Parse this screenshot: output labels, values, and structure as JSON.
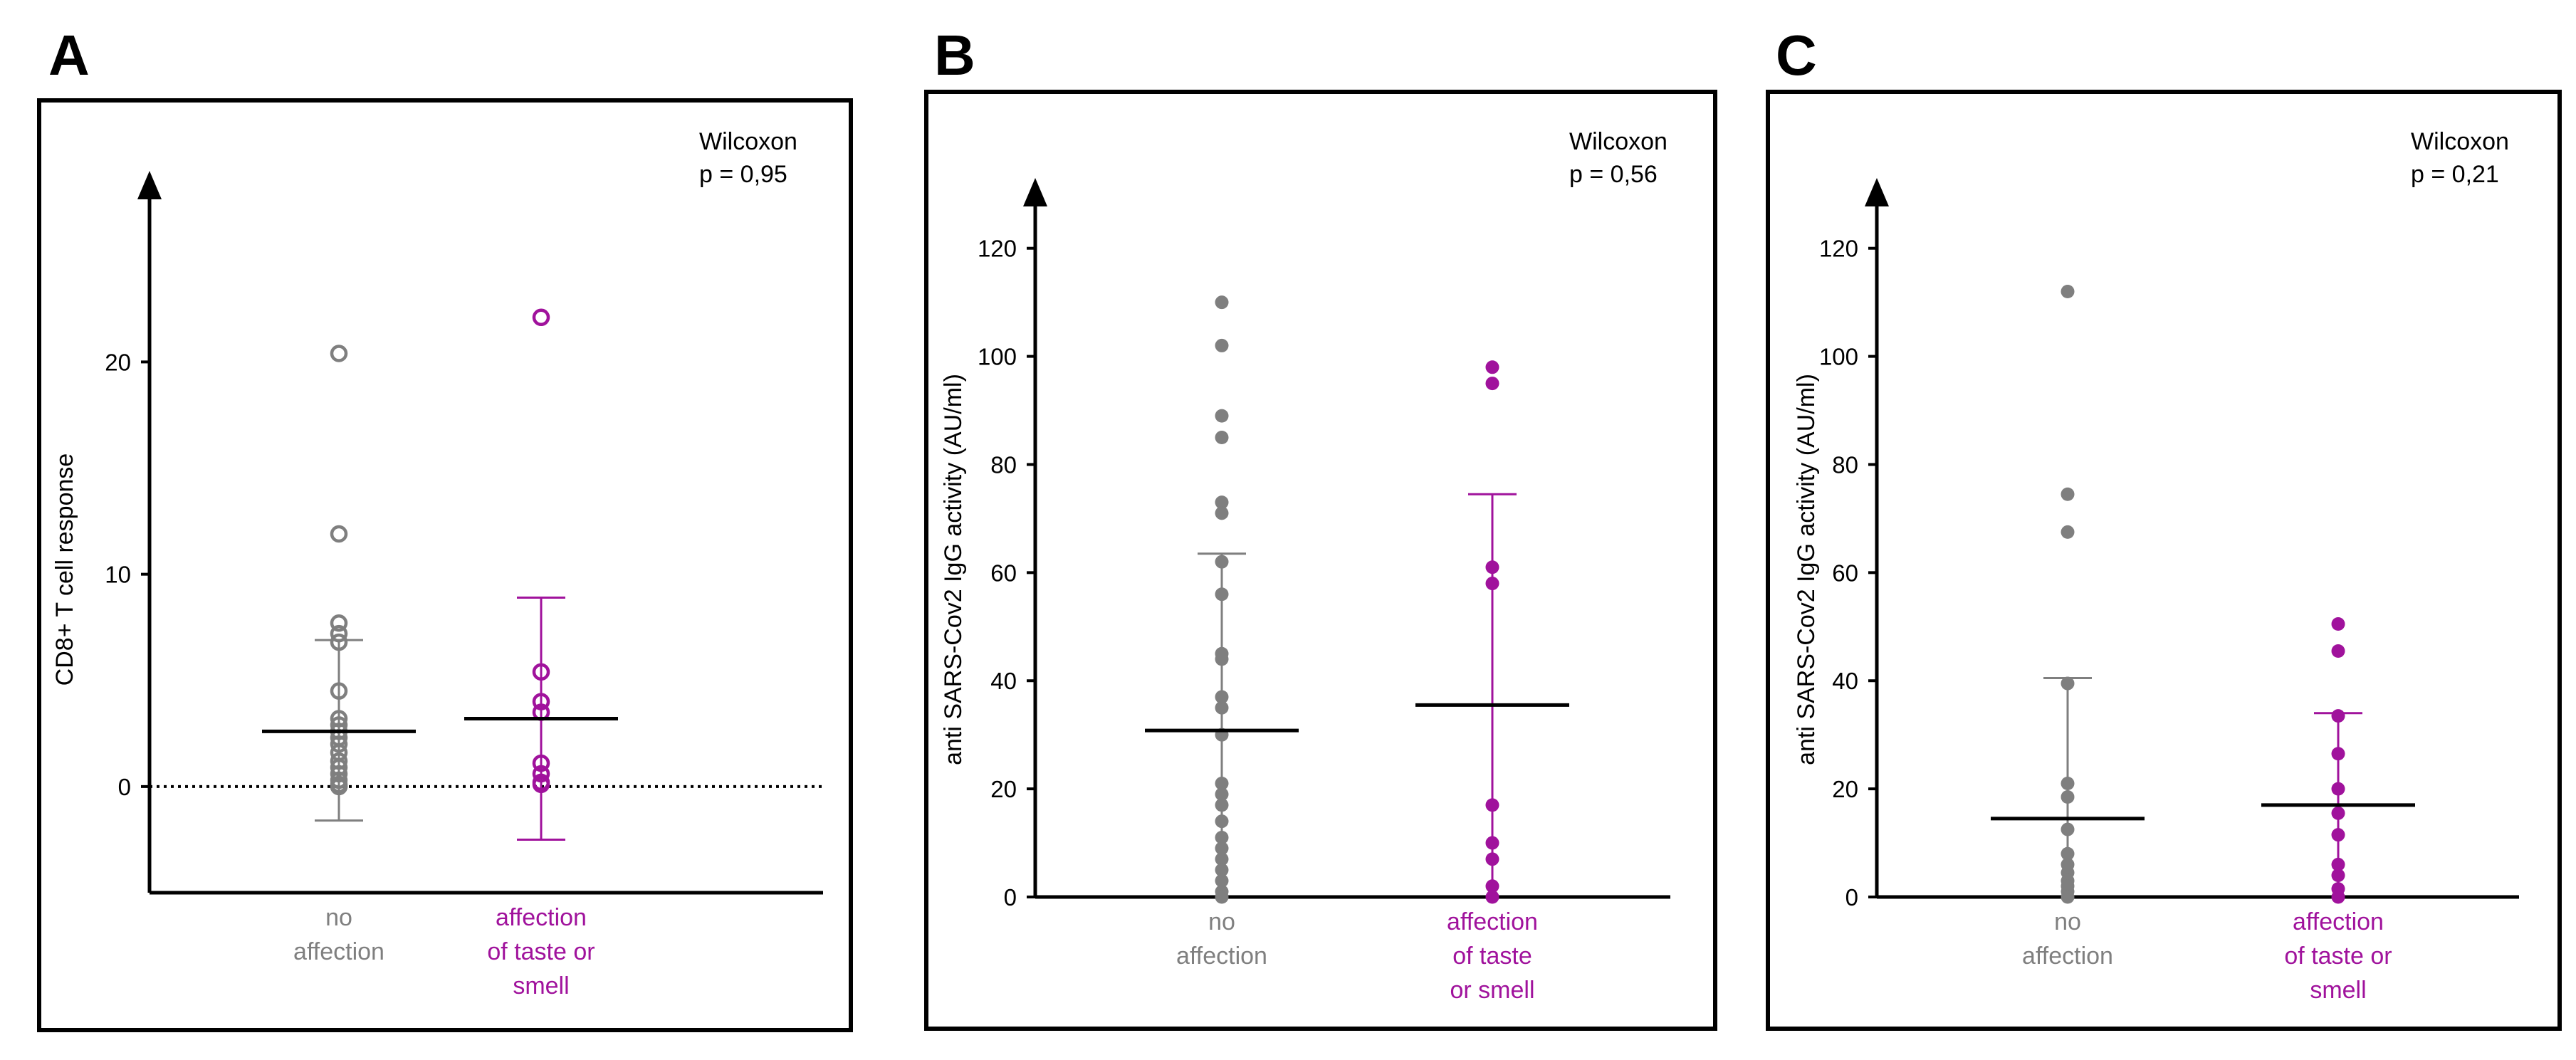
{
  "colors": {
    "no_affection": "#7f7f7f",
    "affected": "#a0129c",
    "axis": "#000000"
  },
  "panels": [
    {
      "letter": "A",
      "stat_test": "Wilcoxon",
      "p_value": "p = 0,95"
    },
    {
      "letter": "B",
      "stat_test": "Wilcoxon",
      "p_value": "p = 0,56"
    },
    {
      "letter": "C",
      "stat_test": "Wilcoxon",
      "p_value": "p = 0,21"
    }
  ],
  "chart_data": [
    {
      "type": "scatter",
      "panel": "A",
      "title": "",
      "ylabel": "CD8+ T cell response",
      "xlabel": "",
      "ylim": [
        -5,
        29
      ],
      "yticks": [
        0,
        10,
        20
      ],
      "reference_line_y": 0,
      "marker": "open-circle",
      "groups": [
        {
          "name": "no affection",
          "label_lines": [
            "no",
            "affection"
          ],
          "color_key": "no_affection",
          "values": [
            20.4,
            11.9,
            7.7,
            7.2,
            6.8,
            4.5,
            3.2,
            2.9,
            2.6,
            2.3,
            2.0,
            1.6,
            1.2,
            0.9,
            0.6,
            0.3,
            0.1,
            0,
            0,
            0
          ],
          "mean": 2.6,
          "err_low": -1.6,
          "err_high": 6.9
        },
        {
          "name": "affection of taste or smell",
          "label_lines": [
            "affection",
            "of taste or",
            "smell"
          ],
          "color_key": "affected",
          "values": [
            22.1,
            5.4,
            4.0,
            3.5,
            1.1,
            0.6,
            0.2,
            0.1
          ],
          "mean": 3.2,
          "err_low": -2.5,
          "err_high": 8.9
        }
      ]
    },
    {
      "type": "scatter",
      "panel": "B",
      "title": "",
      "ylabel": "anti SARS-Cov2 IgG activity (AU/ml)",
      "xlabel": "",
      "ylim": [
        0,
        133
      ],
      "yticks": [
        0,
        20,
        40,
        60,
        80,
        100,
        120
      ],
      "marker": "filled-circle",
      "groups": [
        {
          "name": "no affection",
          "label_lines": [
            "no",
            "affection"
          ],
          "color_key": "no_affection",
          "values": [
            110,
            102,
            89,
            85,
            73,
            71,
            62,
            56,
            45,
            44,
            37,
            35,
            30,
            21,
            19,
            17,
            14,
            11,
            9,
            7,
            5,
            3,
            1,
            0
          ],
          "mean": 30.8,
          "err_low": 0,
          "err_high": 63.5
        },
        {
          "name": "affection of taste or smell",
          "label_lines": [
            "affection",
            "of taste",
            "or smell"
          ],
          "color_key": "affected",
          "values": [
            98,
            95,
            61,
            58,
            17,
            10,
            7,
            2,
            0
          ],
          "mean": 35.5,
          "err_low": 0,
          "err_high": 74.5
        }
      ]
    },
    {
      "type": "scatter",
      "panel": "C",
      "title": "",
      "ylabel": "anti SARS-Cov2 IgG activity (AU/ml)",
      "xlabel": "",
      "ylim": [
        0,
        133
      ],
      "yticks": [
        0,
        20,
        40,
        60,
        80,
        100,
        120
      ],
      "marker": "filled-circle",
      "groups": [
        {
          "name": "no affection",
          "label_lines": [
            "no",
            "affection"
          ],
          "color_key": "no_affection",
          "values": [
            112,
            74.5,
            67.5,
            39.5,
            21,
            18.5,
            12.5,
            8,
            6,
            4.5,
            3,
            2,
            1,
            0
          ],
          "mean": 14.5,
          "err_low": 0,
          "err_high": 40.5
        },
        {
          "name": "affection of taste or smell",
          "label_lines": [
            "affection",
            "of taste or",
            "smell"
          ],
          "color_key": "affected",
          "values": [
            50.5,
            45.5,
            33.5,
            26.5,
            20,
            15.5,
            11.5,
            6,
            4,
            1.5,
            0
          ],
          "mean": 17,
          "err_low": 0,
          "err_high": 34
        }
      ]
    }
  ]
}
